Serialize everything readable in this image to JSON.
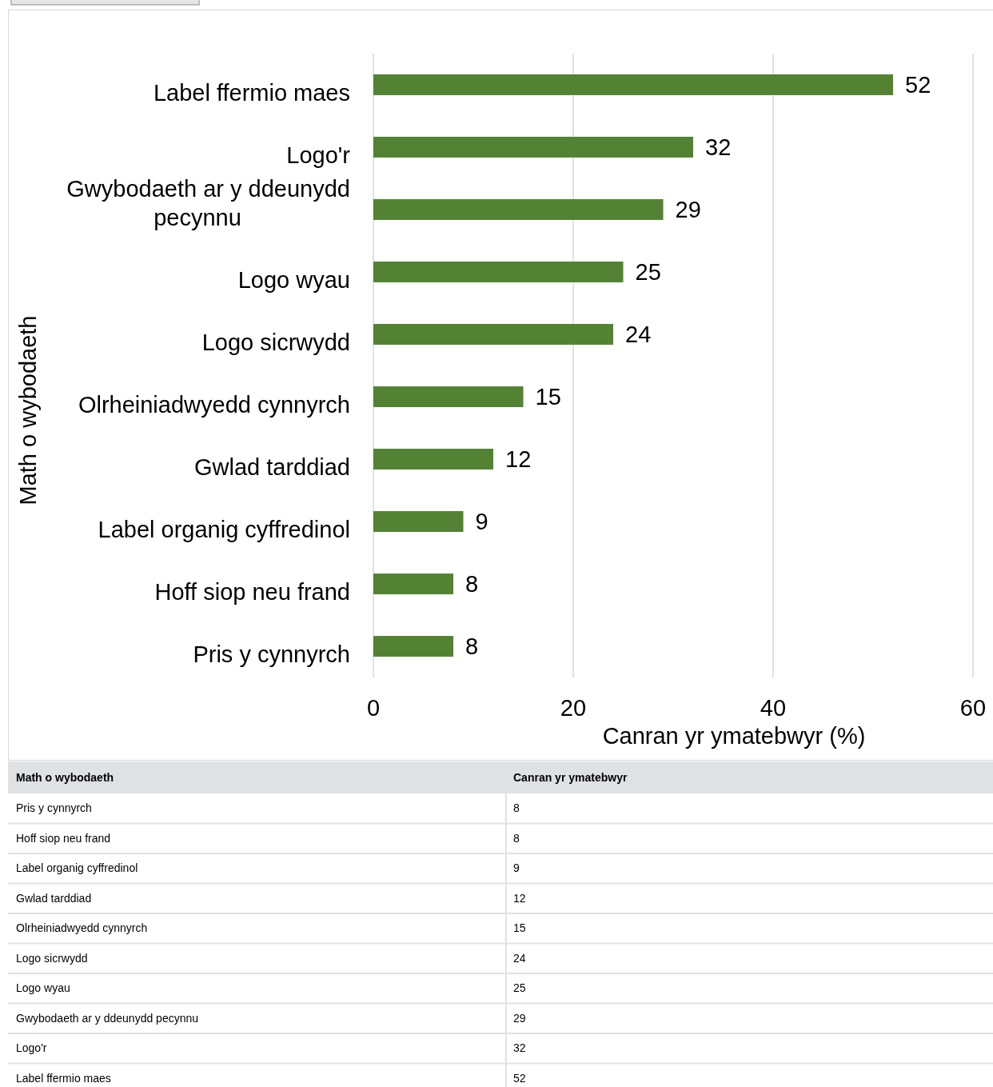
{
  "chart_data": [
    {
      "type": "bar",
      "orientation": "horizontal",
      "xlabel": "Canran yr ymatebwyr (%)",
      "ylabel": "Math o wybodaeth",
      "categories": [
        "Label ffermio maes",
        "Logo'r",
        "Gwybodaeth ar y ddeunydd pecynnu",
        "Logo wyau",
        "Logo sicrwydd",
        "Olrheiniadwyedd cynnyrch",
        "Gwlad tarddiad",
        "Label organig cyffredinol",
        "Hoff siop neu frand",
        "Pris y cynnyrch"
      ],
      "values": [
        52,
        32,
        29,
        25,
        24,
        15,
        12,
        9,
        8,
        8
      ],
      "color": "#548235",
      "xlim": [
        0,
        60
      ],
      "xticks": [
        0,
        20,
        40,
        60
      ],
      "grid": "x",
      "data_labels": true
    },
    {
      "type": "other",
      "ylabel": "Math o wybodaeth",
      "xlabel": "Canran yr ymatebwyr",
      "categories": [
        "Pris y cynnyrch",
        "Hoff siop neu frand",
        "Label organig cyffredinol",
        "Gwlad tarddiad",
        "Olrheiniadwyedd cynnyrch",
        "Logo sicrwydd",
        "Logo wyau",
        "Gwybodaeth ar y ddeunydd pecynnu",
        "Logo'r",
        "Label ffermio maes"
      ],
      "values": [
        8,
        8,
        9,
        12,
        15,
        24,
        25,
        29,
        32,
        52
      ],
      "data_labels": true
    }
  ]
}
